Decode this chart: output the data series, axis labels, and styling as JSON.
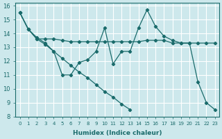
{
  "xlabel": "Humidex (Indice chaleur)",
  "bg_color": "#cde8ec",
  "line_color": "#1a6b6b",
  "grid_color": "#ffffff",
  "xlim": [
    -0.5,
    23.5
  ],
  "ylim": [
    8,
    16.2
  ],
  "xticks": [
    0,
    1,
    2,
    3,
    4,
    5,
    6,
    7,
    8,
    9,
    10,
    11,
    12,
    13,
    14,
    15,
    16,
    17,
    18,
    19,
    20,
    21,
    22,
    23
  ],
  "yticks": [
    8,
    9,
    10,
    11,
    12,
    13,
    14,
    15,
    16
  ],
  "s1_x": [
    0,
    1,
    2,
    3,
    4,
    5,
    6,
    7,
    8,
    9,
    10,
    11,
    12,
    13,
    14,
    15,
    16,
    17,
    18,
    19,
    20,
    21,
    22,
    23
  ],
  "s1_y": [
    15.5,
    14.3,
    13.6,
    13.6,
    13.6,
    13.5,
    13.4,
    13.4,
    13.4,
    13.4,
    13.4,
    13.4,
    13.4,
    13.4,
    13.4,
    13.5,
    13.5,
    13.5,
    13.3,
    13.3,
    13.3,
    13.3,
    13.3,
    13.3
  ],
  "s2_x": [
    0,
    1,
    2,
    3,
    4,
    5,
    6,
    7,
    8,
    9,
    10,
    11,
    12,
    13,
    14,
    15,
    16,
    17,
    18,
    19,
    20,
    21,
    22,
    23
  ],
  "s2_y": [
    15.5,
    14.3,
    13.6,
    13.2,
    12.7,
    11.0,
    11.0,
    11.9,
    12.1,
    12.7,
    14.4,
    11.8,
    12.7,
    12.7,
    14.4,
    15.7,
    14.5,
    13.8,
    13.5,
    13.3,
    13.3,
    10.5,
    9.0,
    8.5
  ],
  "s3_x": [
    0,
    1,
    2,
    3,
    4,
    5,
    6,
    7,
    8,
    9,
    10,
    11,
    12,
    13,
    14,
    15,
    16,
    17,
    18,
    19,
    20,
    21,
    22,
    23
  ],
  "s3_y": [
    15.5,
    14.3,
    13.7,
    13.3,
    12.7,
    12.2,
    11.7,
    11.2,
    10.8,
    10.3,
    9.8,
    9.4,
    8.9,
    8.5,
    null,
    null,
    null,
    null,
    null,
    null,
    null,
    null,
    null,
    null
  ]
}
